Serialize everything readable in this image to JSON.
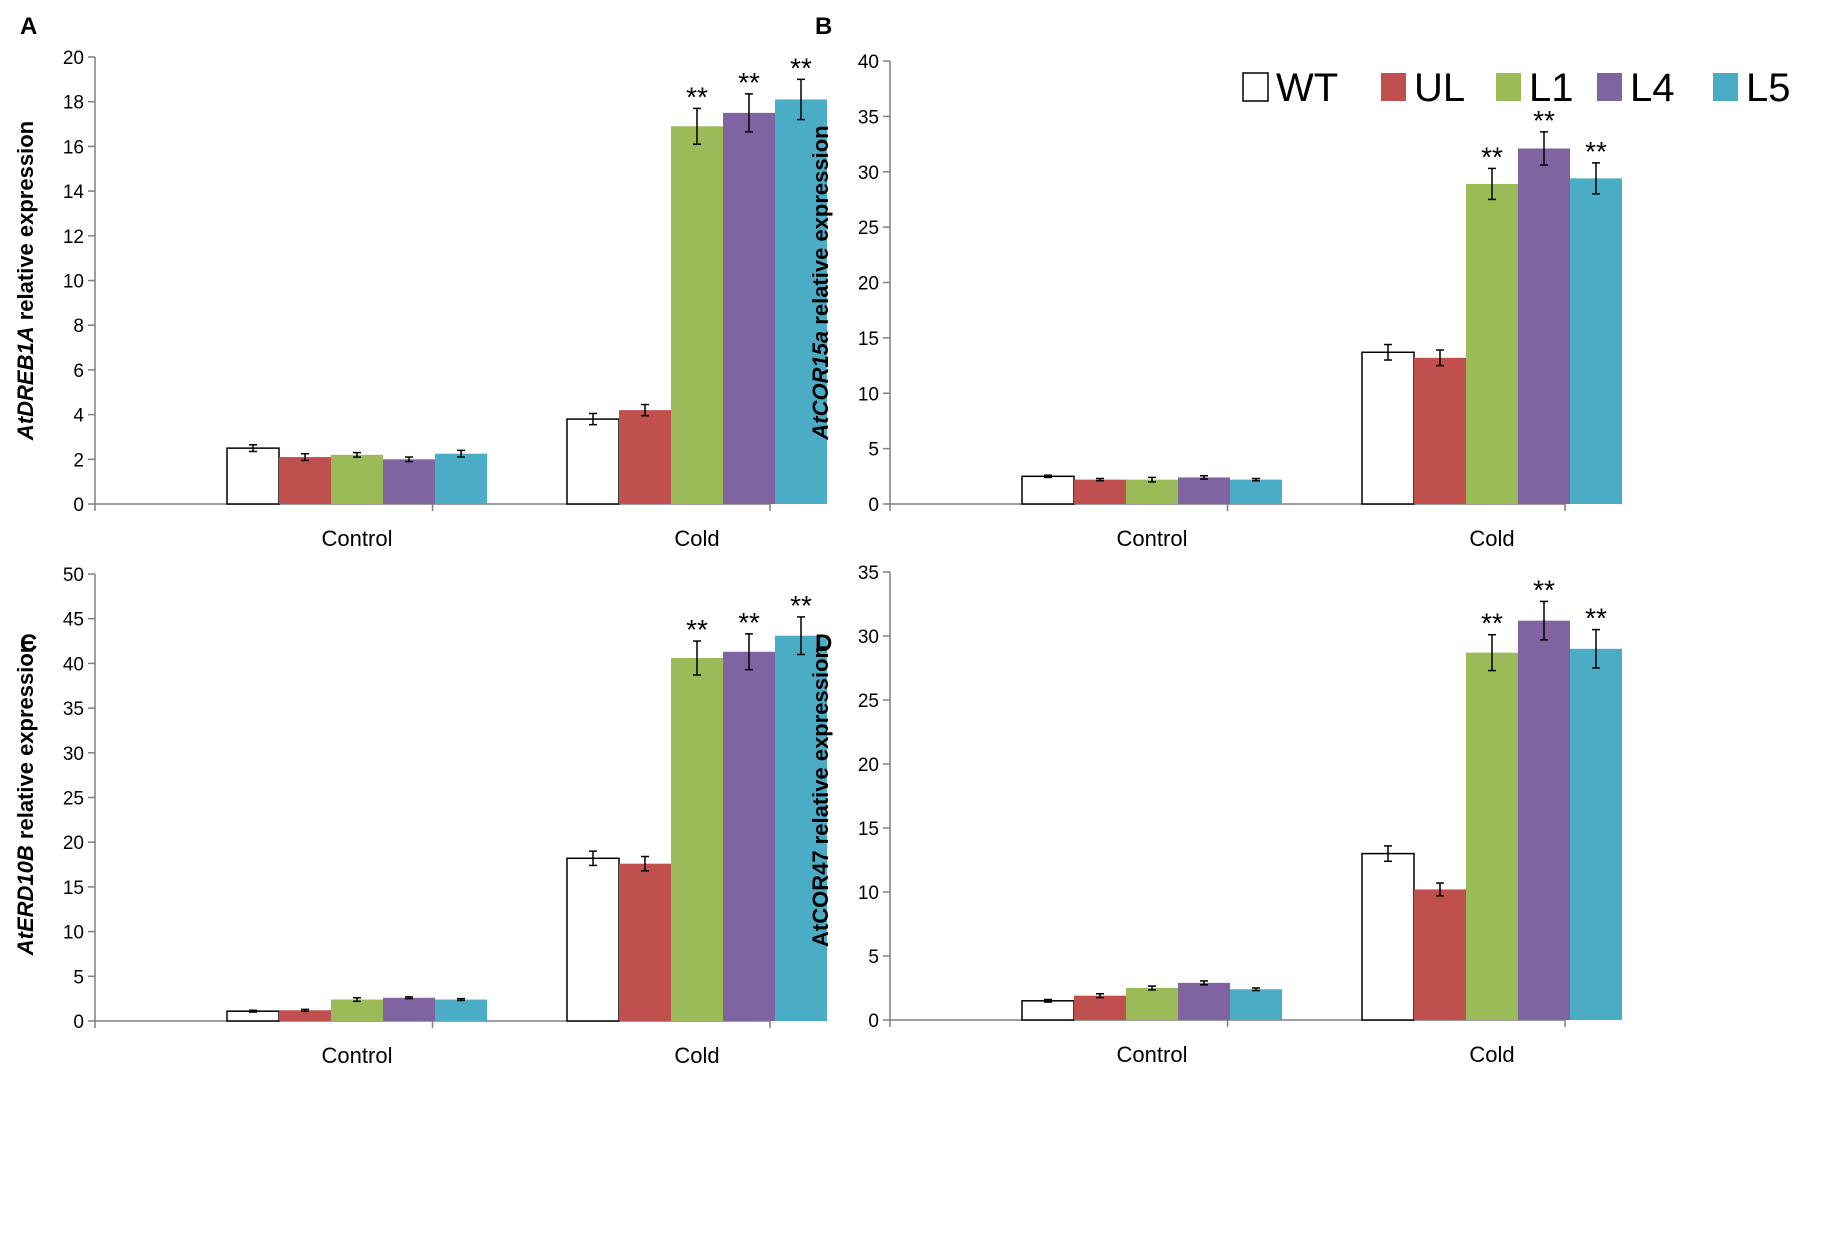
{
  "legend": [
    {
      "name": "WT",
      "color": "#ffffff"
    },
    {
      "name": "UL",
      "color": "#c0504d"
    },
    {
      "name": "L1",
      "color": "#9bbb59"
    },
    {
      "name": "L4",
      "color": "#8064a2"
    },
    {
      "name": "L5",
      "color": "#4bacc6"
    }
  ],
  "chart_data": [
    {
      "type": "bar",
      "panel": "A",
      "ylabel_italic": "AtDREB1A",
      "ylabel_rest": " relative expression",
      "categories": [
        "Control",
        "Cold"
      ],
      "ylim": [
        0,
        20
      ],
      "yticks": [
        0,
        2,
        4,
        6,
        8,
        10,
        12,
        14,
        16,
        18,
        20
      ],
      "series": [
        {
          "name": "WT",
          "values": [
            2.5,
            3.8
          ],
          "errors": [
            0.15,
            0.25
          ]
        },
        {
          "name": "UL",
          "values": [
            2.1,
            4.2
          ],
          "errors": [
            0.15,
            0.25
          ]
        },
        {
          "name": "L1",
          "values": [
            2.2,
            16.9
          ],
          "errors": [
            0.1,
            0.8
          ]
        },
        {
          "name": "L4",
          "values": [
            2.0,
            17.5
          ],
          "errors": [
            0.1,
            0.85
          ]
        },
        {
          "name": "L5",
          "values": [
            2.25,
            18.1
          ],
          "errors": [
            0.15,
            0.9
          ]
        }
      ],
      "annotations": [
        [
          "",
          ""
        ],
        [
          "",
          ""
        ],
        [
          "",
          "**"
        ],
        [
          "",
          "**"
        ],
        [
          "",
          "**"
        ]
      ]
    },
    {
      "type": "bar",
      "panel": "B",
      "ylabel_italic": "AtCOR15a",
      "ylabel_rest": " relative expression",
      "categories": [
        "Control",
        "Cold"
      ],
      "ylim": [
        0,
        40
      ],
      "yticks": [
        0,
        5,
        10,
        15,
        20,
        25,
        30,
        35,
        40
      ],
      "series": [
        {
          "name": "WT",
          "values": [
            2.5,
            13.7
          ],
          "errors": [
            0.1,
            0.7
          ]
        },
        {
          "name": "UL",
          "values": [
            2.2,
            13.2
          ],
          "errors": [
            0.1,
            0.7
          ]
        },
        {
          "name": "L1",
          "values": [
            2.2,
            28.9
          ],
          "errors": [
            0.2,
            1.4
          ]
        },
        {
          "name": "L4",
          "values": [
            2.4,
            32.1
          ],
          "errors": [
            0.15,
            1.5
          ]
        },
        {
          "name": "L5",
          "values": [
            2.2,
            29.4
          ],
          "errors": [
            0.1,
            1.4
          ]
        }
      ],
      "annotations": [
        [
          "",
          ""
        ],
        [
          "",
          ""
        ],
        [
          "",
          "**"
        ],
        [
          "",
          "**"
        ],
        [
          "",
          "**"
        ]
      ]
    },
    {
      "type": "bar",
      "panel": "C",
      "ylabel_italic": "AtERD10B",
      "ylabel_rest": " relative expression",
      "categories": [
        "Control",
        "Cold"
      ],
      "ylim": [
        0,
        50
      ],
      "yticks": [
        0,
        5,
        10,
        15,
        20,
        25,
        30,
        35,
        40,
        45,
        50
      ],
      "series": [
        {
          "name": "WT",
          "values": [
            1.1,
            18.2
          ],
          "errors": [
            0.1,
            0.8
          ]
        },
        {
          "name": "UL",
          "values": [
            1.2,
            17.6
          ],
          "errors": [
            0.1,
            0.8
          ]
        },
        {
          "name": "L1",
          "values": [
            2.4,
            40.6
          ],
          "errors": [
            0.2,
            1.9
          ]
        },
        {
          "name": "L4",
          "values": [
            2.6,
            41.3
          ],
          "errors": [
            0.1,
            2.0
          ]
        },
        {
          "name": "L5",
          "values": [
            2.4,
            43.1
          ],
          "errors": [
            0.1,
            2.1
          ]
        }
      ],
      "annotations": [
        [
          "",
          ""
        ],
        [
          "",
          ""
        ],
        [
          "",
          "**"
        ],
        [
          "",
          "**"
        ],
        [
          "",
          "**"
        ]
      ]
    },
    {
      "type": "bar",
      "panel": "D",
      "ylabel_italic": "",
      "ylabel_rest": "AtCOR47 relative expression",
      "categories": [
        "Control",
        "Cold"
      ],
      "ylim": [
        0,
        35
      ],
      "yticks": [
        0,
        5,
        10,
        15,
        20,
        25,
        30,
        35
      ],
      "series": [
        {
          "name": "WT",
          "values": [
            1.5,
            13.0
          ],
          "errors": [
            0.1,
            0.6
          ]
        },
        {
          "name": "UL",
          "values": [
            1.9,
            10.2
          ],
          "errors": [
            0.15,
            0.5
          ]
        },
        {
          "name": "L1",
          "values": [
            2.5,
            28.7
          ],
          "errors": [
            0.15,
            1.4
          ]
        },
        {
          "name": "L4",
          "values": [
            2.9,
            31.2
          ],
          "errors": [
            0.15,
            1.5
          ]
        },
        {
          "name": "L5",
          "values": [
            2.4,
            29.0
          ],
          "errors": [
            0.1,
            1.5
          ]
        }
      ],
      "annotations": [
        [
          "",
          ""
        ],
        [
          "",
          ""
        ],
        [
          "",
          "**"
        ],
        [
          "",
          "**"
        ],
        [
          "",
          "**"
        ]
      ]
    }
  ]
}
